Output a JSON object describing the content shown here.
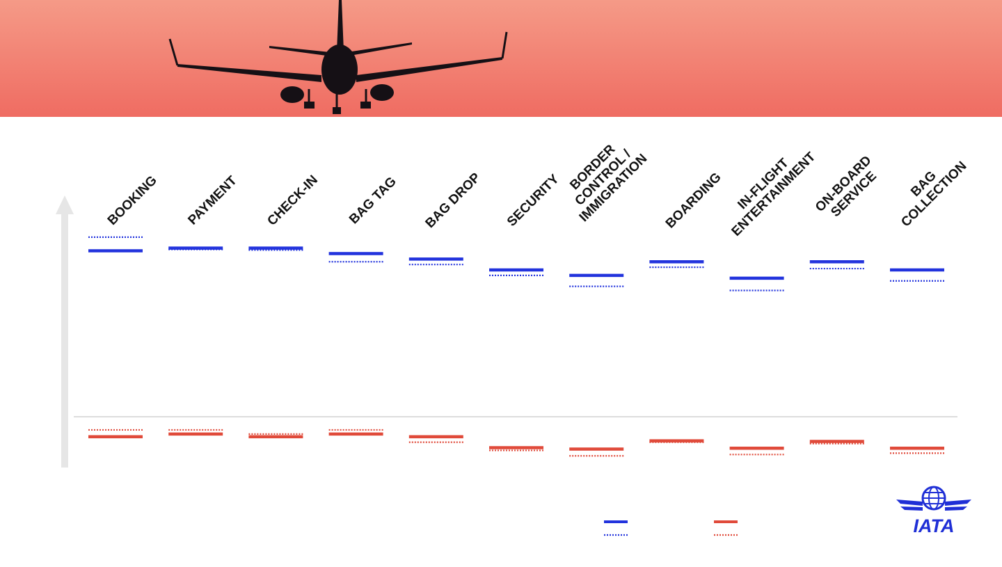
{
  "chart_data": {
    "type": "line",
    "title": "",
    "xlabel": "",
    "ylabel": "",
    "categories": [
      "BOOKING",
      "PAYMENT",
      "CHECK-IN",
      "BAG TAG",
      "BAG DROP",
      "SECURITY",
      "BORDER\nCONTROL /\nIMMIGRATION",
      "BOARDING",
      "IN-FLIGHT\nENTERTAINMENT",
      "ON-BOARD\nSERVICE",
      "BAG\nCOLLECTION"
    ],
    "ylim": [
      0,
      100
    ],
    "grid": false,
    "series": [
      {
        "color": "#2233dd",
        "style": "solid",
        "values": [
          79,
          80,
          80,
          78,
          76,
          72,
          70,
          75,
          69,
          75,
          72
        ]
      },
      {
        "color": "#2233dd",
        "style": "dotted",
        "values": [
          84,
          79.5,
          79.3,
          75,
          74,
          70,
          66,
          73,
          64.5,
          72.5,
          68
        ]
      },
      {
        "color": "#e04a3a",
        "style": "solid",
        "values": [
          11,
          12,
          11,
          12,
          11,
          7,
          6.5,
          9.5,
          6.8,
          9.3,
          6.8
        ]
      },
      {
        "color": "#e04a3a",
        "style": "dotted",
        "values": [
          13.5,
          13.5,
          12,
          13.5,
          9,
          6,
          4,
          9,
          4.5,
          8.5,
          5
        ]
      }
    ],
    "legend": {
      "placement": "bottom-center",
      "groups": [
        {
          "color": "#2233dd",
          "items": [
            "solid",
            "dotted"
          ]
        },
        {
          "color": "#e04a3a",
          "items": [
            "solid",
            "dotted"
          ]
        }
      ]
    }
  },
  "hero": {
    "sky_top": "#f59a87",
    "sky_bottom": "#ef6c62",
    "plane_color": "#151015"
  },
  "logo": {
    "text": "IATA",
    "color": "#1f2fd6"
  },
  "baseline_color": "#dddddd",
  "arrow_color": "#e6e6e6"
}
